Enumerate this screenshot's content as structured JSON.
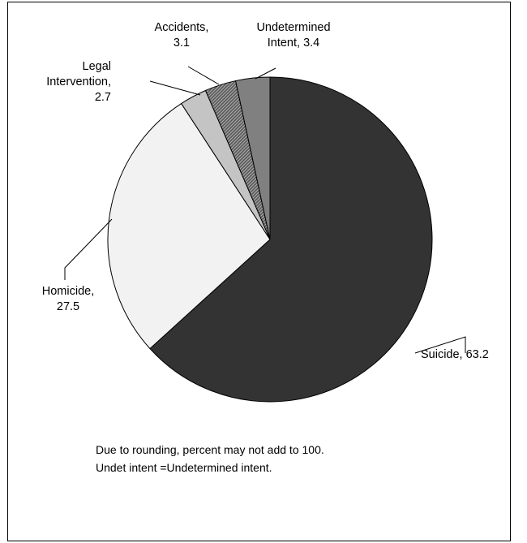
{
  "chart_data": {
    "type": "pie",
    "slices": [
      {
        "label_lines": [
          "Suicide, 63.2"
        ],
        "value": 63.2,
        "color": "#333333",
        "pattern": "solid"
      },
      {
        "label_lines": [
          "Homicide,",
          "27.5"
        ],
        "value": 27.5,
        "color": "#f2f2f2",
        "pattern": "solid"
      },
      {
        "label_lines": [
          "Legal",
          "Intervention,",
          "2.7"
        ],
        "value": 2.7,
        "color": "#c4c4c4",
        "pattern": "solid"
      },
      {
        "label_lines": [
          "Accidents,",
          "3.1"
        ],
        "value": 3.1,
        "color": "#555555",
        "pattern": "hatch"
      },
      {
        "label_lines": [
          "Undetermined",
          "Intent, 3.4"
        ],
        "value": 3.4,
        "color": "#808080",
        "pattern": "solid"
      }
    ],
    "start_angle": "12 o'clock",
    "direction": "clockwise",
    "legend": "none"
  },
  "notes": {
    "line1": "Due to rounding, percent may not add to 100.",
    "line2": "Undet intent =Undetermined intent."
  }
}
